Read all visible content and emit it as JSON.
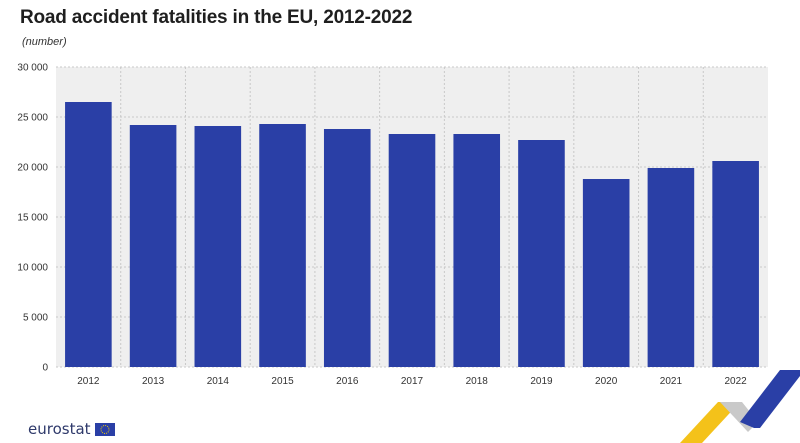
{
  "title": "Road accident fatalities in the EU, 2012-2022",
  "subtitle": "(number)",
  "logo_text": "eurostat",
  "colors": {
    "bar": "#2a3fa6",
    "grid": "#c8c8c8",
    "plot_bg": "#efefef"
  },
  "chart_data": {
    "type": "bar",
    "title": "Road accident fatalities in the EU, 2012-2022",
    "subtitle": "(number)",
    "xlabel": "",
    "ylabel": "",
    "categories": [
      "2012",
      "2013",
      "2014",
      "2015",
      "2016",
      "2017",
      "2018",
      "2019",
      "2020",
      "2021",
      "2022"
    ],
    "values": [
      26500,
      24200,
      24100,
      24300,
      23800,
      23300,
      23300,
      22700,
      18800,
      19900,
      20600
    ],
    "ylim": [
      0,
      30000
    ],
    "yticks": [
      0,
      5000,
      10000,
      15000,
      20000,
      25000,
      30000
    ],
    "ytick_labels": [
      "0",
      "5 000",
      "10 000",
      "15 000",
      "20 000",
      "25 000",
      "30 000"
    ],
    "grid": true,
    "legend": "none"
  }
}
